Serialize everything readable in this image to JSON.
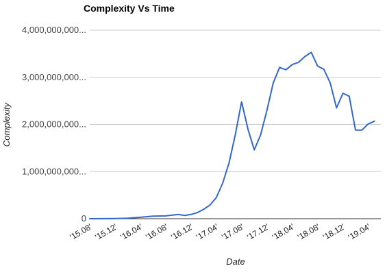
{
  "chart_data": {
    "type": "line",
    "title": "Complexity Vs Time",
    "xlabel": "Date",
    "ylabel": "Complexity",
    "ylim": [
      0,
      4000000000
    ],
    "yticks": [
      {
        "value": 0,
        "label": "0"
      },
      {
        "value": 1000000000,
        "label": "1,000,000,000..."
      },
      {
        "value": 2000000000,
        "label": "2,000,000,000..."
      },
      {
        "value": 3000000000,
        "label": "3,000,000,000..."
      },
      {
        "value": 4000000000,
        "label": "4,000,000,000..."
      }
    ],
    "x": [
      "15.08",
      "15.10",
      "15.12",
      "16.02",
      "16.04",
      "16.06",
      "16.08",
      "16.10",
      "16.12",
      "17.02",
      "17.04",
      "17.05",
      "17.06",
      "17.07",
      "17.08",
      "17.09",
      "17.10",
      "17.11",
      "17.12",
      "18.01",
      "18.02",
      "18.03",
      "18.04",
      "18.05",
      "18.06",
      "18.07",
      "18.08",
      "18.09",
      "18.10",
      "18.11",
      "18.12",
      "19.01",
      "19.02",
      "19.03",
      "19.04",
      "19.05",
      "19.06"
    ],
    "xtick_labels": [
      "'15.08'",
      "'15.12'",
      "'16.04'",
      "'16.08'",
      "'16.12'",
      "'17.04'",
      "'17.08'",
      "'17.12'",
      "'18.04'",
      "'18.08'",
      "'18.12'",
      "'19.04'"
    ],
    "grid": true,
    "legend": "none",
    "series": [
      {
        "color": "#3366cc",
        "points": [
          [
            "15.08",
            0
          ],
          [
            "15.12",
            5000000
          ],
          [
            "16.02",
            10000000
          ],
          [
            "16.04",
            30000000
          ],
          [
            "16.06",
            55000000
          ],
          [
            "16.08",
            60000000
          ],
          [
            "16.10",
            90000000
          ],
          [
            "16.11",
            70000000
          ],
          [
            "16.12",
            90000000
          ],
          [
            "17.01",
            130000000
          ],
          [
            "17.02",
            200000000
          ],
          [
            "17.03",
            290000000
          ],
          [
            "17.04",
            450000000
          ],
          [
            "17.05",
            750000000
          ],
          [
            "17.06",
            1180000000
          ],
          [
            "17.07",
            1780000000
          ],
          [
            "17.08",
            2480000000
          ],
          [
            "17.09",
            1900000000
          ],
          [
            "17.10",
            1460000000
          ],
          [
            "17.11",
            1780000000
          ],
          [
            "17.12",
            2300000000
          ],
          [
            "18.01",
            2880000000
          ],
          [
            "18.02",
            3210000000
          ],
          [
            "18.03",
            3160000000
          ],
          [
            "18.04",
            3270000000
          ],
          [
            "18.05",
            3320000000
          ],
          [
            "18.06",
            3440000000
          ],
          [
            "18.07",
            3530000000
          ],
          [
            "18.08",
            3240000000
          ],
          [
            "18.09",
            3170000000
          ],
          [
            "18.10",
            2880000000
          ],
          [
            "18.11",
            2350000000
          ],
          [
            "18.12",
            2660000000
          ],
          [
            "19.01",
            2600000000
          ],
          [
            "19.02",
            1880000000
          ],
          [
            "19.03",
            1880000000
          ],
          [
            "19.04",
            2010000000
          ],
          [
            "19.05",
            2070000000
          ]
        ]
      }
    ]
  }
}
